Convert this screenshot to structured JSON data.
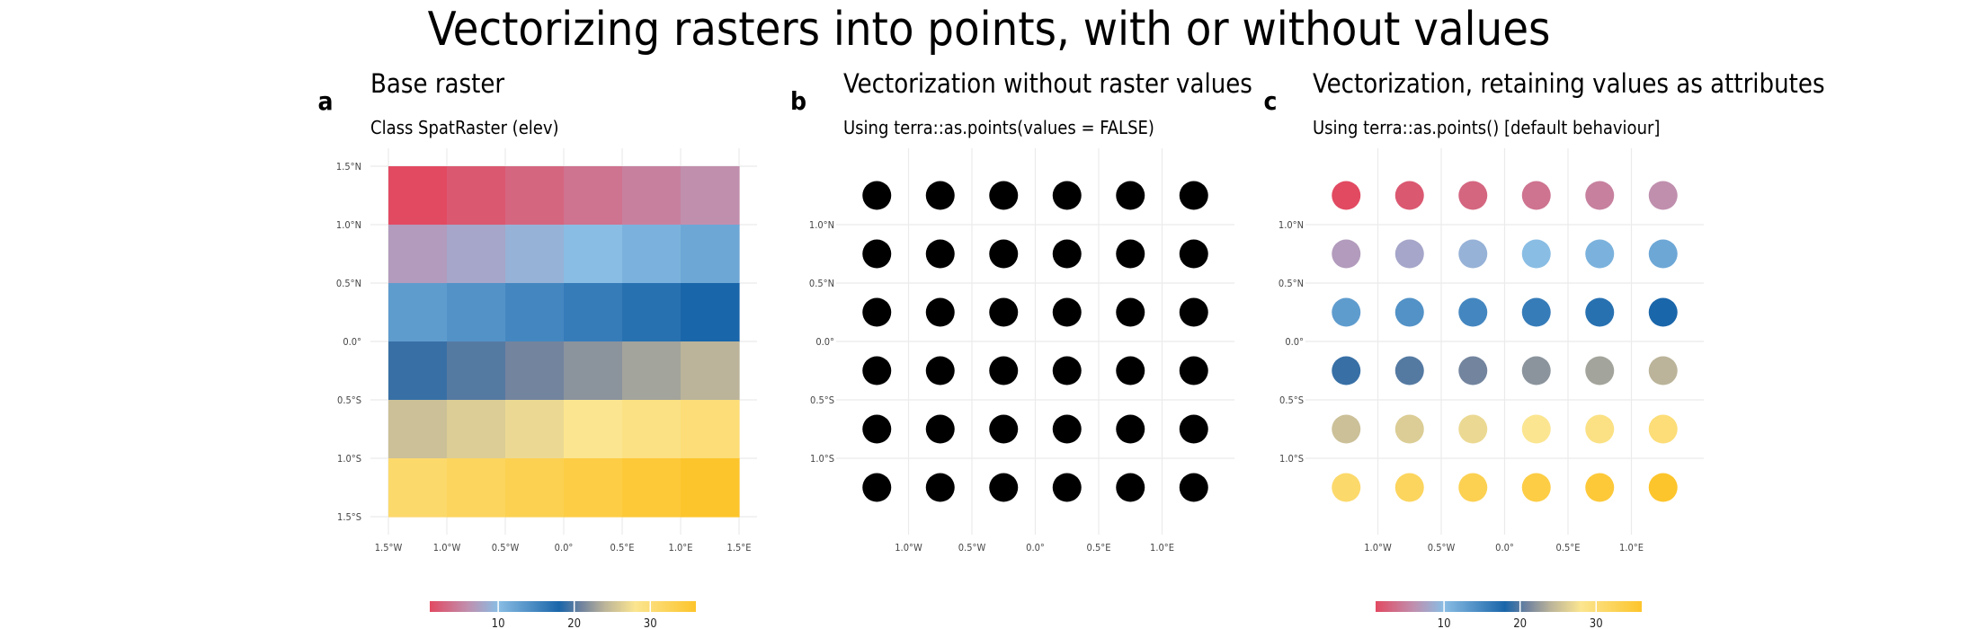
{
  "figure": {
    "title": "Vectorizing rasters into points, with or without values"
  },
  "chart_data": [
    {
      "id": "a",
      "type": "heatmap",
      "title": "Base raster",
      "subtitle": "Class SpatRaster (elev)",
      "x_ticks": [
        "1.5°W",
        "1.0°W",
        "0.5°W",
        "0.0°",
        "0.5°E",
        "1.0°E",
        "1.5°E"
      ],
      "y_ticks": [
        "1.5°N",
        "1.0°N",
        "0.5°N",
        "0.0°",
        "0.5°S",
        "1.0°S",
        "1.5°S"
      ],
      "xlim": [
        -1.5,
        1.5
      ],
      "ylim": [
        -1.5,
        1.5
      ],
      "cells": {
        "nrow": 6,
        "ncol": 6,
        "values": [
          [
            1,
            2,
            3,
            4,
            5,
            6
          ],
          [
            7,
            8,
            9,
            10,
            11,
            12
          ],
          [
            13,
            14,
            15,
            16,
            17,
            18
          ],
          [
            19,
            20,
            21,
            22,
            23,
            24
          ],
          [
            25,
            26,
            27,
            28,
            29,
            30
          ],
          [
            31,
            32,
            33,
            34,
            35,
            36
          ]
        ]
      },
      "grid": true
    },
    {
      "id": "b",
      "type": "scatter",
      "title": "Vectorization without raster values",
      "subtitle": "Using terra::as.points(values = FALSE)",
      "x_ticks": [
        "1.0°W",
        "0.5°W",
        "0.0°",
        "0.5°E",
        "1.0°E"
      ],
      "y_ticks": [
        "1.0°N",
        "0.5°N",
        "0.0°",
        "0.5°S",
        "1.0°S"
      ],
      "x": [
        -1.25,
        -0.75,
        -0.25,
        0.25,
        0.75,
        1.25
      ],
      "y": [
        1.25,
        0.75,
        0.25,
        -0.25,
        -0.75,
        -1.25
      ],
      "point_color": "#000000",
      "grid": true
    },
    {
      "id": "c",
      "type": "scatter",
      "title": "Vectorization, retaining values as attributes",
      "subtitle": "Using terra::as.points() [default behaviour]",
      "x_ticks": [
        "1.0°W",
        "0.5°W",
        "0.0°",
        "0.5°E",
        "1.0°E"
      ],
      "y_ticks": [
        "1.0°N",
        "0.5°N",
        "0.0°",
        "0.5°S",
        "1.0°S"
      ],
      "x": [
        -1.25,
        -0.75,
        -0.25,
        0.25,
        0.75,
        1.25
      ],
      "y": [
        1.25,
        0.75,
        0.25,
        -0.25,
        -0.75,
        -1.25
      ],
      "values": [
        [
          1,
          2,
          3,
          4,
          5,
          6
        ],
        [
          7,
          8,
          9,
          10,
          11,
          12
        ],
        [
          13,
          14,
          15,
          16,
          17,
          18
        ],
        [
          19,
          20,
          21,
          22,
          23,
          24
        ],
        [
          25,
          26,
          27,
          28,
          29,
          30
        ],
        [
          31,
          32,
          33,
          34,
          35,
          36
        ]
      ],
      "grid": true
    }
  ],
  "colorbars": [
    {
      "panel": "a",
      "ticks": [
        10,
        20,
        30
      ],
      "range": [
        1,
        36
      ]
    },
    {
      "panel": "c",
      "ticks": [
        10,
        20,
        30
      ],
      "range": [
        1,
        36
      ]
    }
  ],
  "palette": {
    "stops": [
      {
        "v": 1,
        "color": "#e24a62"
      },
      {
        "v": 6,
        "color": "#c08fae"
      },
      {
        "v": 10,
        "color": "#89bde4"
      },
      {
        "v": 18,
        "color": "#1a66aa"
      },
      {
        "v": 21,
        "color": "#73849e"
      },
      {
        "v": 24,
        "color": "#bbb49a"
      },
      {
        "v": 28,
        "color": "#fbe590"
      },
      {
        "v": 36,
        "color": "#fdc52c"
      }
    ],
    "grid_color": "#ebebeb",
    "tick_color": "#444444"
  }
}
